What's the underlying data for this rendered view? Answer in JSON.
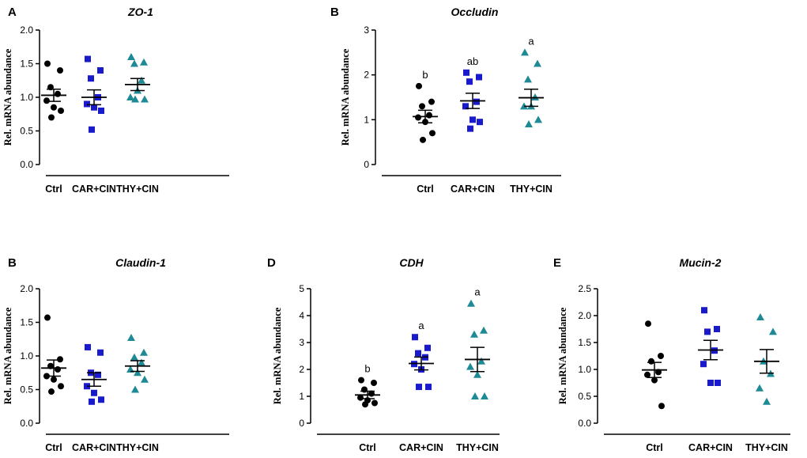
{
  "colors": {
    "Ctrl": "#000000",
    "CAR+CIN": "#1a1acd",
    "THY+CIN": "#1e8a96",
    "axis": "#000000"
  },
  "chart_data": [
    {
      "panel": "A",
      "title": "ZO-1",
      "type": "scatter",
      "ylabel": "Rel. mRNA abundance",
      "ylim": [
        0,
        2.0
      ],
      "yticks": [
        "0.0",
        "0.5",
        "1.0",
        "1.5",
        "2.0"
      ],
      "categories": [
        "Ctrl",
        "CAR+CIN",
        "THY+CIN"
      ],
      "series": [
        {
          "name": "Ctrl",
          "marker": "circle",
          "mean": 1.03,
          "sem": 0.09,
          "sig": "",
          "values": [
            1.5,
            1.4,
            1.15,
            1.05,
            0.95,
            0.85,
            0.8,
            0.7
          ]
        },
        {
          "name": "CAR+CIN",
          "marker": "square",
          "mean": 1.0,
          "sem": 0.11,
          "sig": "",
          "values": [
            1.57,
            1.4,
            1.28,
            1.0,
            0.9,
            0.85,
            0.8,
            0.52
          ]
        },
        {
          "name": "THY+CIN",
          "marker": "triangle",
          "mean": 1.19,
          "sem": 0.09,
          "sig": "",
          "values": [
            1.6,
            1.52,
            1.5,
            1.25,
            1.0,
            1.1,
            0.97,
            0.97
          ]
        }
      ]
    },
    {
      "panel": "B",
      "title": "Occludin",
      "type": "scatter",
      "ylabel": "Rel. mRNA abundance",
      "ylim": [
        0,
        3
      ],
      "yticks": [
        "0",
        "1",
        "2",
        "3"
      ],
      "categories": [
        "Ctrl",
        "CAR+CIN",
        "THY+CIN"
      ],
      "series": [
        {
          "name": "Ctrl",
          "marker": "circle",
          "mean": 1.07,
          "sem": 0.14,
          "sig": "b",
          "values": [
            1.75,
            1.4,
            1.3,
            1.1,
            1.05,
            0.95,
            0.7,
            0.55
          ]
        },
        {
          "name": "CAR+CIN",
          "marker": "square",
          "mean": 1.42,
          "sem": 0.17,
          "sig": "ab",
          "values": [
            2.05,
            1.95,
            1.85,
            1.4,
            1.3,
            1.0,
            0.95,
            0.8
          ]
        },
        {
          "name": "THY+CIN",
          "marker": "triangle",
          "mean": 1.49,
          "sem": 0.19,
          "sig": "a",
          "values": [
            2.5,
            2.25,
            1.9,
            1.5,
            1.3,
            1.3,
            1.0,
            0.9
          ]
        }
      ]
    },
    {
      "panel": "B",
      "title": "Claudin-1",
      "type": "scatter",
      "ylabel": "Rel. mRNA abundance",
      "ylim": [
        0,
        2.0
      ],
      "yticks": [
        "0.0",
        "0.5",
        "1.0",
        "1.5",
        "2.0"
      ],
      "categories": [
        "Ctrl",
        "CAR+CIN",
        "THY+CIN"
      ],
      "series": [
        {
          "name": "Ctrl",
          "marker": "circle",
          "mean": 0.82,
          "sem": 0.12,
          "sig": "",
          "values": [
            1.57,
            0.95,
            0.85,
            0.8,
            0.7,
            0.65,
            0.55,
            0.47
          ]
        },
        {
          "name": "CAR+CIN",
          "marker": "square",
          "mean": 0.65,
          "sem": 0.1,
          "sig": "",
          "values": [
            1.13,
            1.05,
            0.75,
            0.72,
            0.55,
            0.45,
            0.35,
            0.32
          ]
        },
        {
          "name": "THY+CIN",
          "marker": "triangle",
          "mean": 0.85,
          "sem": 0.08,
          "sig": "",
          "values": [
            1.27,
            1.05,
            0.98,
            0.9,
            0.8,
            0.75,
            0.65,
            0.5
          ]
        }
      ]
    },
    {
      "panel": "D",
      "title": "CDH",
      "type": "scatter",
      "ylabel": "Rel. mRNA abundance",
      "ylim": [
        0,
        5
      ],
      "yticks": [
        "0",
        "1",
        "2",
        "3",
        "4",
        "5"
      ],
      "categories": [
        "Ctrl",
        "CAR+CIN",
        "THY+CIN"
      ],
      "series": [
        {
          "name": "Ctrl",
          "marker": "circle",
          "mean": 1.05,
          "sem": 0.14,
          "sig": "b",
          "values": [
            1.6,
            1.5,
            1.25,
            1.1,
            0.95,
            0.85,
            0.75,
            0.7
          ]
        },
        {
          "name": "CAR+CIN",
          "marker": "square",
          "mean": 2.22,
          "sem": 0.24,
          "sig": "a",
          "values": [
            3.2,
            2.8,
            2.6,
            2.45,
            2.2,
            2.0,
            1.35,
            1.35
          ]
        },
        {
          "name": "THY+CIN",
          "marker": "triangle",
          "mean": 2.37,
          "sem": 0.45,
          "sig": "a",
          "values": [
            4.45,
            3.45,
            3.3,
            2.3,
            2.1,
            1.8,
            1.0,
            1.0
          ]
        }
      ]
    },
    {
      "panel": "E",
      "title": "Mucin-2",
      "type": "scatter",
      "ylabel": "Rel. mRNA abundance",
      "ylim": [
        0,
        2.5
      ],
      "yticks": [
        "0.0",
        "0.5",
        "1.0",
        "1.5",
        "2.0",
        "2.5"
      ],
      "categories": [
        "Ctrl",
        "CAR+CIN",
        "THY+CIN"
      ],
      "series": [
        {
          "name": "Ctrl",
          "marker": "circle",
          "mean": 0.99,
          "sem": 0.14,
          "sig": "",
          "values": [
            1.85,
            1.25,
            1.15,
            0.95,
            0.9,
            0.8,
            0.32
          ]
        },
        {
          "name": "CAR+CIN",
          "marker": "square",
          "mean": 1.36,
          "sem": 0.18,
          "sig": "",
          "values": [
            2.1,
            1.75,
            1.7,
            1.35,
            1.1,
            0.75,
            0.75
          ]
        },
        {
          "name": "THY+CIN",
          "marker": "triangle",
          "mean": 1.15,
          "sem": 0.22,
          "sig": "",
          "values": [
            1.97,
            1.7,
            1.15,
            0.92,
            0.65,
            0.4
          ]
        }
      ]
    }
  ]
}
